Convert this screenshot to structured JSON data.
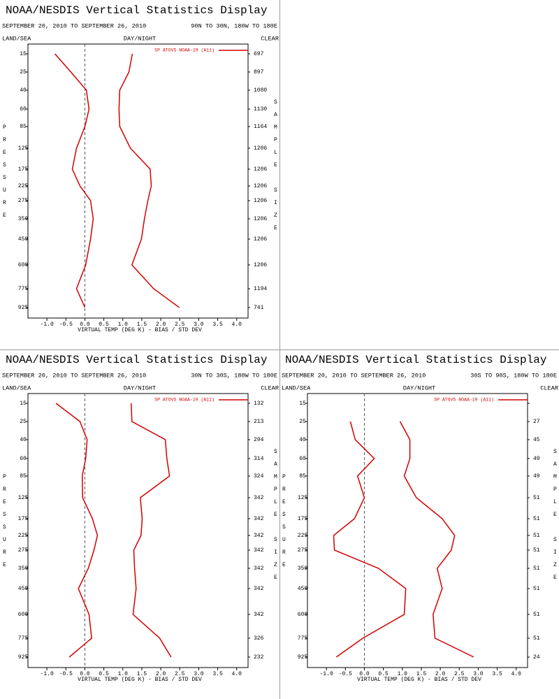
{
  "chart_data": [
    {
      "type": "line",
      "title": "NOAA/NESDIS Vertical Statistics Display",
      "subtitle": "SEPTEMBER 20, 2010 TO SEPTEMBER 26, 2010",
      "region": "90N TO 30N, 180W TO 180E",
      "land_sea": "LAND/SEA",
      "day_night": "DAY/NIGHT",
      "cloud": "CLEAR",
      "y_label": "PRESSURE",
      "y2_label": "SAMPLE SIZE",
      "x_label": "VIRTUAL TEMP (DEG K) - BIAS / STD DEV",
      "categories": [
        15,
        25,
        40,
        60,
        85,
        125,
        175,
        225,
        275,
        350,
        450,
        600,
        775,
        925
      ],
      "sample_size": [
        697,
        897,
        1080,
        1130,
        1164,
        1206,
        1206,
        1206,
        1206,
        1206,
        1206,
        1206,
        1194,
        741
      ],
      "series": [
        {
          "name": "SP ATOVS NOAA-19 (A11)",
          "color": "#d40000",
          "bias": [
            -0.79,
            -0.37,
            0.04,
            0.11,
            0.0,
            -0.22,
            -0.33,
            -0.13,
            0.15,
            0.22,
            0.15,
            0.02,
            -0.22,
            0.0
          ],
          "std_dev": [
            1.25,
            1.16,
            0.92,
            0.9,
            0.92,
            1.2,
            1.72,
            1.75,
            1.66,
            1.57,
            1.49,
            1.24,
            1.81,
            2.49
          ]
        }
      ],
      "xlim": [
        -1.5,
        4.3
      ],
      "xticks": [
        {
          "value": -1,
          "label": "-1.0"
        },
        {
          "value": -0.5,
          "label": "-0.5"
        },
        {
          "value": 0,
          "label": "0.0"
        },
        {
          "value": 0.5,
          "label": "0.5"
        },
        {
          "value": 1,
          "label": "1.0"
        },
        {
          "value": 1.5,
          "label": "1.5"
        },
        {
          "value": 2,
          "label": "2.0"
        },
        {
          "value": 2.5,
          "label": "2.5"
        },
        {
          "value": 3,
          "label": "3.0"
        },
        {
          "value": 3.5,
          "label": "3.5"
        },
        {
          "value": 4,
          "label": "4.0"
        }
      ],
      "zero_line": true
    },
    {
      "type": "line",
      "title": "NOAA/NESDIS Vertical Statistics Display",
      "subtitle": "SEPTEMBER 20, 2010 TO SEPTEMBER 26, 2010",
      "region": "30N TO 30S, 180W TO 180E",
      "land_sea": "LAND/SEA",
      "day_night": "DAY/NIGHT",
      "cloud": "CLEAR",
      "y_label": "PRESSURE",
      "y2_label": "SAMPLE SIZE",
      "x_label": "VIRTUAL TEMP (DEG K) - BIAS / STD DEV",
      "categories": [
        15,
        25,
        40,
        60,
        85,
        125,
        175,
        225,
        275,
        350,
        450,
        600,
        775,
        925
      ],
      "sample_size": [
        132,
        213,
        294,
        314,
        324,
        342,
        342,
        342,
        342,
        342,
        342,
        342,
        326,
        232
      ],
      "series": [
        {
          "name": "SP ATOVS NOAA-19 (A11)",
          "color": "#d40000",
          "bias": [
            -0.76,
            -0.13,
            0.06,
            0.02,
            -0.07,
            -0.06,
            0.2,
            0.33,
            0.24,
            0.09,
            -0.17,
            0.11,
            0.18,
            -0.41
          ],
          "std_dev": [
            1.22,
            1.24,
            2.12,
            2.16,
            2.23,
            1.46,
            1.51,
            1.48,
            1.29,
            1.31,
            1.35,
            1.27,
            1.97,
            2.27
          ]
        }
      ],
      "xlim": [
        -1.5,
        4.3
      ],
      "xticks": [
        {
          "value": -1,
          "label": "-1.0"
        },
        {
          "value": -0.5,
          "label": "-0.5"
        },
        {
          "value": 0,
          "label": "0.0"
        },
        {
          "value": 0.5,
          "label": "0.5"
        },
        {
          "value": 1,
          "label": "1.0"
        },
        {
          "value": 1.5,
          "label": "1.5"
        },
        {
          "value": 2,
          "label": "2.0"
        },
        {
          "value": 2.5,
          "label": "2.5"
        },
        {
          "value": 3,
          "label": "3.0"
        },
        {
          "value": 3.5,
          "label": "3.5"
        },
        {
          "value": 4,
          "label": "4.0"
        }
      ],
      "zero_line": true
    },
    {
      "type": "line",
      "title": "NOAA/NESDIS Vertical Statistics Display",
      "subtitle": "SEPTEMBER 20, 2010 TO SEPTEMBER 26, 2010",
      "region": "30S TO 90S, 180W TO 180E",
      "land_sea": "LAND/SEA",
      "day_night": "DAY/NIGHT",
      "cloud": "CLEAR",
      "y_label": "PRESSURE",
      "y2_label": "SAMPLE SIZE",
      "x_label": "VIRTUAL TEMP (DEG K) - BIAS / STD DEV",
      "categories": [
        15,
        25,
        40,
        60,
        85,
        125,
        175,
        225,
        275,
        350,
        450,
        600,
        775,
        925
      ],
      "sample_size": [
        null,
        27,
        45,
        49,
        49,
        51,
        51,
        51,
        51,
        51,
        51,
        51,
        51,
        24
      ],
      "series": [
        {
          "name": "SP ATOVS NOAA-19 (A11)",
          "color": "#d40000",
          "bias": [
            null,
            -0.37,
            -0.24,
            0.26,
            -0.18,
            0.0,
            -0.26,
            -0.81,
            -0.79,
            0.37,
            1.09,
            1.05,
            -0.04,
            -0.74
          ],
          "std_dev": [
            null,
            0.94,
            1.2,
            1.2,
            1.05,
            1.37,
            2.05,
            2.38,
            2.29,
            1.92,
            2.05,
            1.81,
            1.86,
            2.88
          ]
        }
      ],
      "xlim": [
        -1.5,
        4.3
      ],
      "xticks": [
        {
          "value": -1,
          "label": "-1.0"
        },
        {
          "value": -0.5,
          "label": "-0.5"
        },
        {
          "value": 0,
          "label": "0.0"
        },
        {
          "value": 0.5,
          "label": "0.5"
        },
        {
          "value": 1,
          "label": "1.0"
        },
        {
          "value": 1.5,
          "label": "1.5"
        },
        {
          "value": 2,
          "label": "2.0"
        },
        {
          "value": 2.5,
          "label": "2.5"
        },
        {
          "value": 3,
          "label": "3.0"
        },
        {
          "value": 3.5,
          "label": "3.5"
        },
        {
          "value": 4,
          "label": "4.0"
        }
      ],
      "zero_line": true
    }
  ]
}
